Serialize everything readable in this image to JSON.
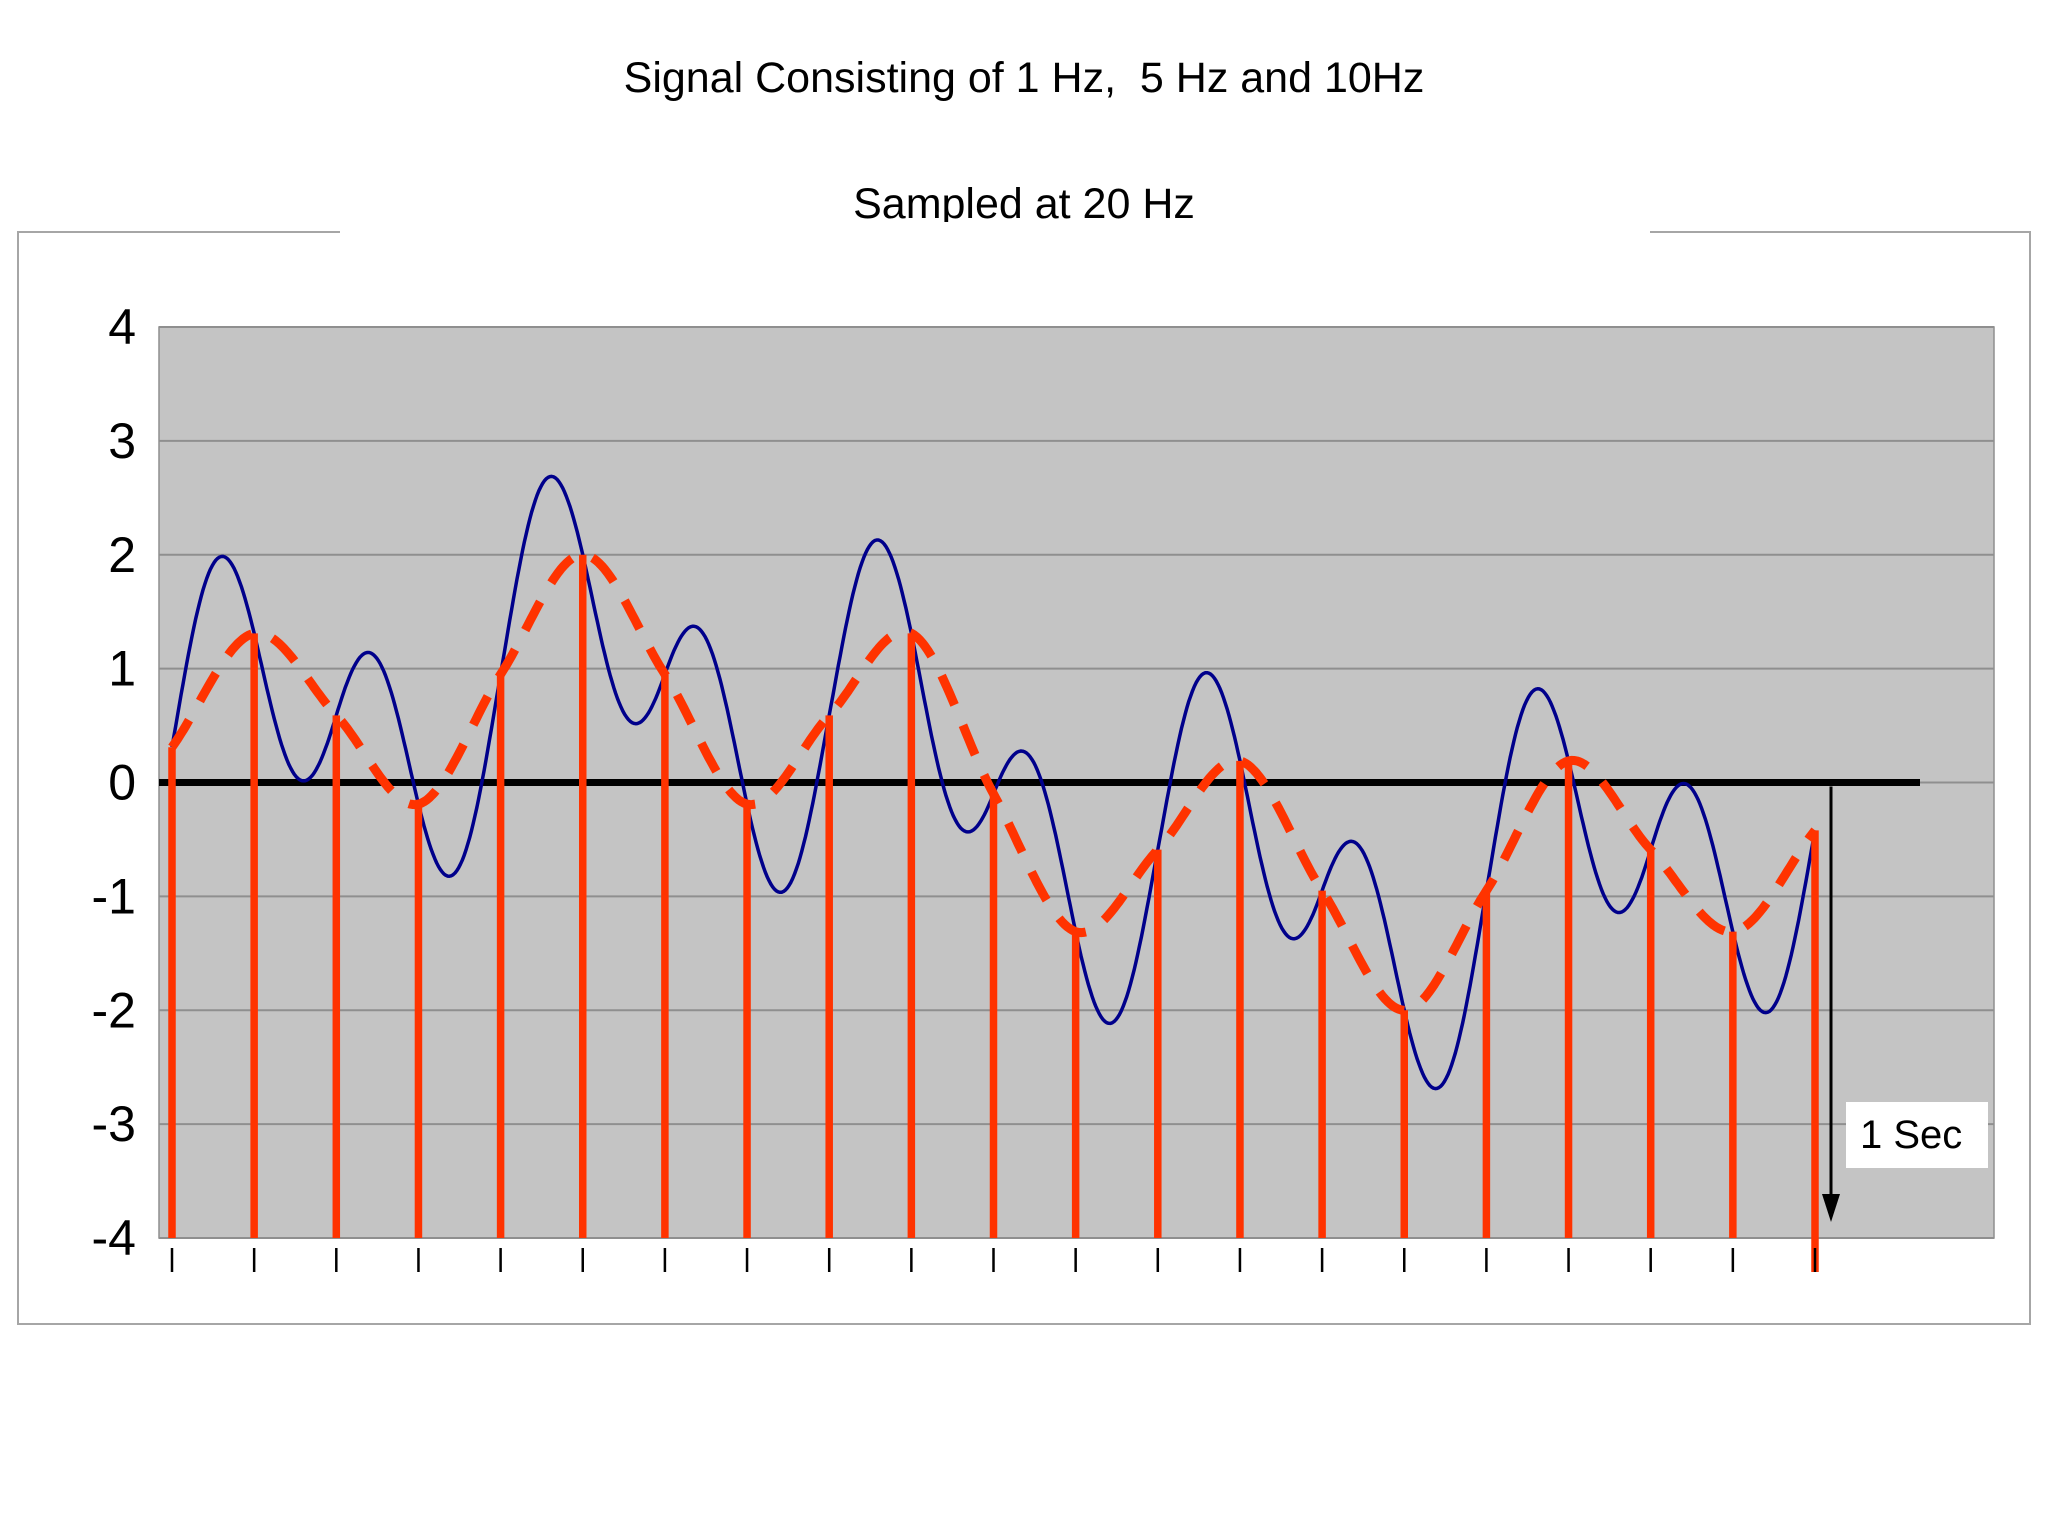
{
  "chart_data": {
    "type": "line",
    "title": "Signal Consisting of 1 Hz,  5 Hz and 10Hz",
    "subtitle": "Sampled at 20 Hz",
    "xlabel": "",
    "ylabel": "",
    "ylim": [
      -4,
      4
    ],
    "yticks": [
      4,
      3,
      2,
      1,
      0,
      -1,
      -2,
      -3,
      -4
    ],
    "x_range_seconds": [
      0,
      1
    ],
    "grid": "horizontal",
    "legend": "none",
    "plot_bg_color": "#c4c4c4",
    "grid_color": "#8f8f8f",
    "zero_line_color": "#000000",
    "signal_components_hz": [
      1,
      5,
      10
    ],
    "sample_rate_hz": 20,
    "annotation": {
      "label": "1 Sec"
    },
    "series": [
      {
        "name": "continuous signal (1 Hz + 5 Hz + 10 Hz sum)",
        "style": "solid",
        "color": "#00008b",
        "formula": "reconstruction(t) + sin(2*pi*10*t)",
        "added_component_hz": 10,
        "added_component_amplitude": 1
      },
      {
        "name": "sampled / reconstructed signal (1 Hz + 5 Hz)",
        "style": "dashed",
        "color": "#ff3300",
        "interpolation": "smooth through sample points"
      },
      {
        "name": "samples at 20 Hz (stems)",
        "style": "stem",
        "color": "#ff3300",
        "t": [
          0,
          0.05,
          0.1,
          0.15,
          0.2,
          0.25,
          0.3,
          0.35,
          0.4,
          0.45,
          0.5,
          0.55,
          0.6,
          0.65,
          0.7,
          0.75,
          0.8,
          0.85,
          0.9,
          0.95,
          1
        ],
        "values": [
          0.31,
          1.31,
          0.59,
          -0.19,
          0.95,
          2.0,
          0.95,
          -0.19,
          0.59,
          1.31,
          -0.1,
          -1.31,
          -0.59,
          0.19,
          -0.95,
          -2.0,
          -0.95,
          0.19,
          -0.59,
          -1.31,
          -0.42
        ]
      }
    ]
  }
}
